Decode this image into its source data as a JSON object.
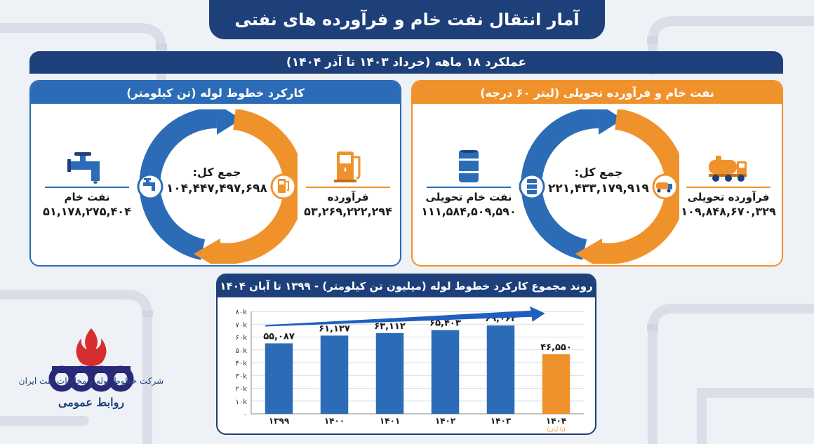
{
  "title": "آمار انتقال نفت خام و فرآورده های نفتی",
  "period": "عملکرد ۱۸ ماهه (خرداد ۱۴۰۳ تا آذر ۱۴۰۴)",
  "pipeline_panel": {
    "header": "کارکرد خطوط لوله (تن کیلومتر)",
    "total_label": "جمع کل:",
    "total_value": "۱۰۴,۴۴۷,۴۹۷,۶۹۸",
    "crude_label": "نفت خام",
    "crude_value": "۵۱,۱۷۸,۲۷۵,۴۰۴",
    "product_label": "فرآورده",
    "product_value": "۵۳,۲۶۹,۲۲۲,۲۹۴",
    "crude_icon": "faucet-pipe-icon",
    "product_icon": "fuel-pump-icon"
  },
  "delivery_panel": {
    "header": "نفت خام و فرآورده تحویلی (لیتر ۶۰ درجه)",
    "total_label": "جمع کل:",
    "total_value": "۲۲۱,۴۳۳,۱۷۹,۹۱۹",
    "crude_label": "نفت خام تحویلی",
    "crude_value": "۱۱۱,۵۸۴,۵۰۹,۵۹۰",
    "product_label": "فرآورده تحویلی",
    "product_value": "۱۰۹,۸۴۸,۶۷۰,۳۲۹",
    "crude_icon": "oil-barrel-icon",
    "product_icon": "tanker-truck-icon"
  },
  "colors": {
    "navy": "#1d3f7a",
    "blue": "#2c6cb7",
    "orange": "#f0922b"
  },
  "chart_data": {
    "type": "bar",
    "title": "روند مجموع کارکرد خطوط لوله (میلیون تن کیلومتر) - ۱۳۹۹ تا آبان ۱۴۰۴",
    "categories": [
      "۱۳۹۹",
      "۱۴۰۰",
      "۱۴۰۱",
      "۱۴۰۲",
      "۱۴۰۳",
      "۱۴۰۴"
    ],
    "category_notes": [
      "",
      "",
      "",
      "",
      "",
      "(تا آبان)"
    ],
    "values": [
      55087,
      61137,
      63112,
      65403,
      69063,
      46550
    ],
    "value_labels": [
      "۵۵,۰۸۷",
      "۶۱,۱۳۷",
      "۶۳,۱۱۲",
      "۶۵,۴۰۳",
      "۶۹,۰۶۳",
      "۴۶,۵۵۰"
    ],
    "bar_colors": [
      "#2c6cb7",
      "#2c6cb7",
      "#2c6cb7",
      "#2c6cb7",
      "#2c6cb7",
      "#f0922b"
    ],
    "ylim": [
      0,
      80000
    ],
    "yticks": [
      0,
      10000,
      20000,
      30000,
      40000,
      50000,
      60000,
      70000,
      80000
    ],
    "ytick_labels": [
      "۰",
      "۱۰k",
      "۲۰k",
      "۳۰k",
      "۴۰k",
      "۵۰k",
      "۶۰k",
      "۷۰k",
      "۸۰k"
    ],
    "grid": true,
    "trend_arrow": true
  },
  "logo": {
    "company": "شرکت خطوط لوله و مخابرات نفت ایران",
    "department": "روابط عمومی",
    "icon": "nioc-flame-logo-icon"
  }
}
